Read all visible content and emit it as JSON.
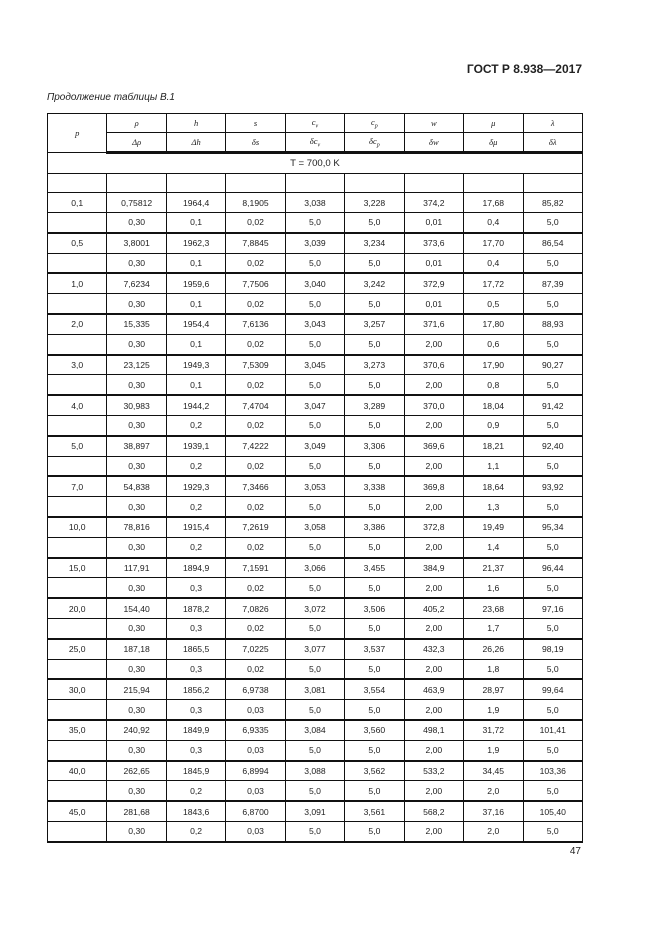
{
  "header": {
    "standard": "ГОСТ Р 8.938—2017",
    "caption": "Продолжение таблицы В.1"
  },
  "table": {
    "p_label": "p",
    "top_headers": [
      "ρ",
      "h",
      "s",
      "c",
      "c",
      "w",
      "μ",
      "λ"
    ],
    "top_subs": [
      "",
      "",
      "",
      "v",
      "p",
      "",
      "",
      ""
    ],
    "bottom_headers": [
      "Δρ",
      "Δh",
      "δs",
      "δc",
      "δc",
      "δw",
      "δμ",
      "δλ"
    ],
    "bottom_subs": [
      "",
      "",
      "",
      "v",
      "p",
      "",
      "",
      ""
    ],
    "temperature": "T = 700,0 K",
    "rows": [
      {
        "p": "0,1",
        "v": [
          "0,75812",
          "1964,4",
          "8,1905",
          "3,038",
          "3,228",
          "374,2",
          "17,68",
          "85,82"
        ],
        "d": [
          "0,30",
          "0,1",
          "0,02",
          "5,0",
          "5,0",
          "0,01",
          "0,4",
          "5,0"
        ]
      },
      {
        "p": "0,5",
        "v": [
          "3,8001",
          "1962,3",
          "7,8845",
          "3,039",
          "3,234",
          "373,6",
          "17,70",
          "86,54"
        ],
        "d": [
          "0,30",
          "0,1",
          "0,02",
          "5,0",
          "5,0",
          "0,01",
          "0,4",
          "5,0"
        ]
      },
      {
        "p": "1,0",
        "v": [
          "7,6234",
          "1959,6",
          "7,7506",
          "3,040",
          "3,242",
          "372,9",
          "17,72",
          "87,39"
        ],
        "d": [
          "0,30",
          "0,1",
          "0,02",
          "5,0",
          "5,0",
          "0,01",
          "0,5",
          "5,0"
        ]
      },
      {
        "p": "2,0",
        "v": [
          "15,335",
          "1954,4",
          "7,6136",
          "3,043",
          "3,257",
          "371,6",
          "17,80",
          "88,93"
        ],
        "d": [
          "0,30",
          "0,1",
          "0,02",
          "5,0",
          "5,0",
          "2,00",
          "0,6",
          "5,0"
        ]
      },
      {
        "p": "3,0",
        "v": [
          "23,125",
          "1949,3",
          "7,5309",
          "3,045",
          "3,273",
          "370,6",
          "17,90",
          "90,27"
        ],
        "d": [
          "0,30",
          "0,1",
          "0,02",
          "5,0",
          "5,0",
          "2,00",
          "0,8",
          "5,0"
        ]
      },
      {
        "p": "4,0",
        "v": [
          "30,983",
          "1944,2",
          "7,4704",
          "3,047",
          "3,289",
          "370,0",
          "18,04",
          "91,42"
        ],
        "d": [
          "0,30",
          "0,2",
          "0,02",
          "5,0",
          "5,0",
          "2,00",
          "0,9",
          "5,0"
        ]
      },
      {
        "p": "5,0",
        "v": [
          "38,897",
          "1939,1",
          "7,4222",
          "3,049",
          "3,306",
          "369,6",
          "18,21",
          "92,40"
        ],
        "d": [
          "0,30",
          "0,2",
          "0,02",
          "5,0",
          "5,0",
          "2,00",
          "1,1",
          "5,0"
        ]
      },
      {
        "p": "7,0",
        "v": [
          "54,838",
          "1929,3",
          "7,3466",
          "3,053",
          "3,338",
          "369,8",
          "18,64",
          "93,92"
        ],
        "d": [
          "0,30",
          "0,2",
          "0,02",
          "5,0",
          "5,0",
          "2,00",
          "1,3",
          "5,0"
        ]
      },
      {
        "p": "10,0",
        "v": [
          "78,816",
          "1915,4",
          "7,2619",
          "3,058",
          "3,386",
          "372,8",
          "19,49",
          "95,34"
        ],
        "d": [
          "0,30",
          "0,2",
          "0,02",
          "5,0",
          "5,0",
          "2,00",
          "1,4",
          "5,0"
        ]
      },
      {
        "p": "15,0",
        "v": [
          "117,91",
          "1894,9",
          "7,1591",
          "3,066",
          "3,455",
          "384,9",
          "21,37",
          "96,44"
        ],
        "d": [
          "0,30",
          "0,3",
          "0,02",
          "5,0",
          "5,0",
          "2,00",
          "1,6",
          "5,0"
        ]
      },
      {
        "p": "20,0",
        "v": [
          "154,40",
          "1878,2",
          "7,0826",
          "3,072",
          "3,506",
          "405,2",
          "23,68",
          "97,16"
        ],
        "d": [
          "0,30",
          "0,3",
          "0,02",
          "5,0",
          "5,0",
          "2,00",
          "1,7",
          "5,0"
        ]
      },
      {
        "p": "25,0",
        "v": [
          "187,18",
          "1865,5",
          "7,0225",
          "3,077",
          "3,537",
          "432,3",
          "26,26",
          "98,19"
        ],
        "d": [
          "0,30",
          "0,3",
          "0,02",
          "5,0",
          "5,0",
          "2,00",
          "1,8",
          "5,0"
        ]
      },
      {
        "p": "30,0",
        "v": [
          "215,94",
          "1856,2",
          "6,9738",
          "3,081",
          "3,554",
          "463,9",
          "28,97",
          "99,64"
        ],
        "d": [
          "0,30",
          "0,3",
          "0,03",
          "5,0",
          "5,0",
          "2,00",
          "1,9",
          "5,0"
        ]
      },
      {
        "p": "35,0",
        "v": [
          "240,92",
          "1849,9",
          "6,9335",
          "3,084",
          "3,560",
          "498,1",
          "31,72",
          "101,41"
        ],
        "d": [
          "0,30",
          "0,3",
          "0,03",
          "5,0",
          "5,0",
          "2,00",
          "1,9",
          "5,0"
        ]
      },
      {
        "p": "40,0",
        "v": [
          "262,65",
          "1845,9",
          "6,8994",
          "3,088",
          "3,562",
          "533,2",
          "34,45",
          "103,36"
        ],
        "d": [
          "0,30",
          "0,2",
          "0,03",
          "5,0",
          "5,0",
          "2,00",
          "2,0",
          "5,0"
        ]
      },
      {
        "p": "45,0",
        "v": [
          "281,68",
          "1843,6",
          "6,8700",
          "3,091",
          "3,561",
          "568,2",
          "37,16",
          "105,40"
        ],
        "d": [
          "0,30",
          "0,2",
          "0,03",
          "5,0",
          "5,0",
          "2,00",
          "2,0",
          "5,0"
        ]
      }
    ]
  },
  "footer": {
    "page_number": "47"
  }
}
